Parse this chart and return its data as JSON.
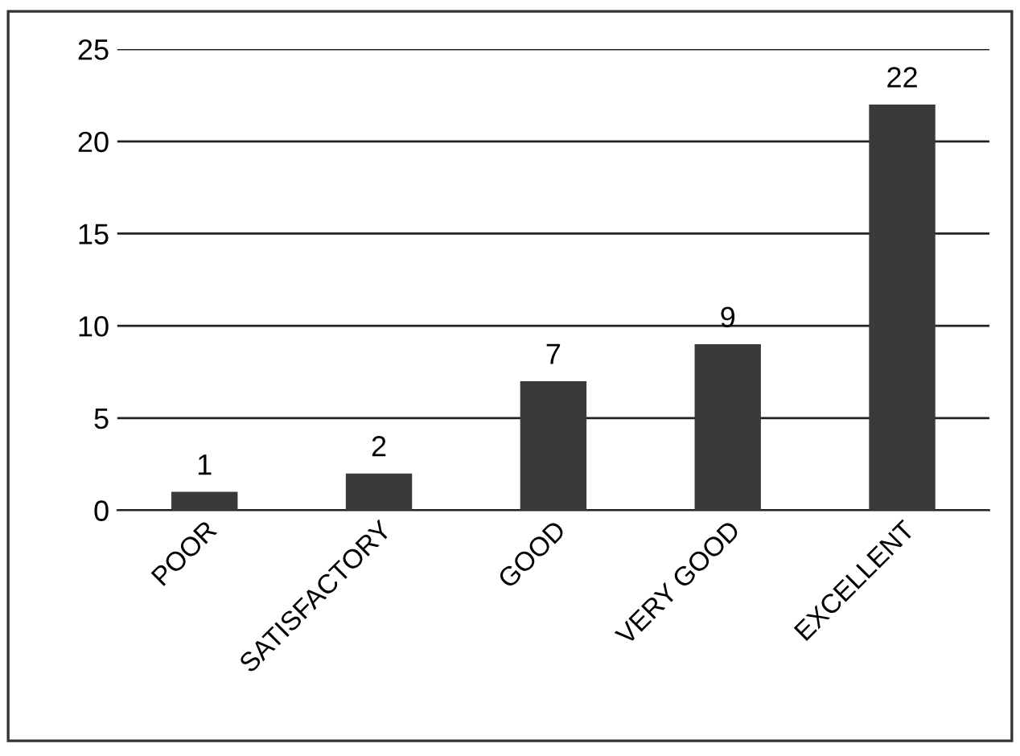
{
  "chart_data": {
    "type": "bar",
    "categories": [
      "POOR",
      "SATISFACTORY",
      "GOOD",
      "VERY GOOD",
      "EXCELLENT"
    ],
    "values": [
      1,
      2,
      7,
      9,
      22
    ],
    "color": "#3a3a3a",
    "ylim": [
      0,
      25
    ],
    "yticks": [
      0,
      5,
      10,
      15,
      20,
      25
    ],
    "grid": "y",
    "data_labels": true
  }
}
